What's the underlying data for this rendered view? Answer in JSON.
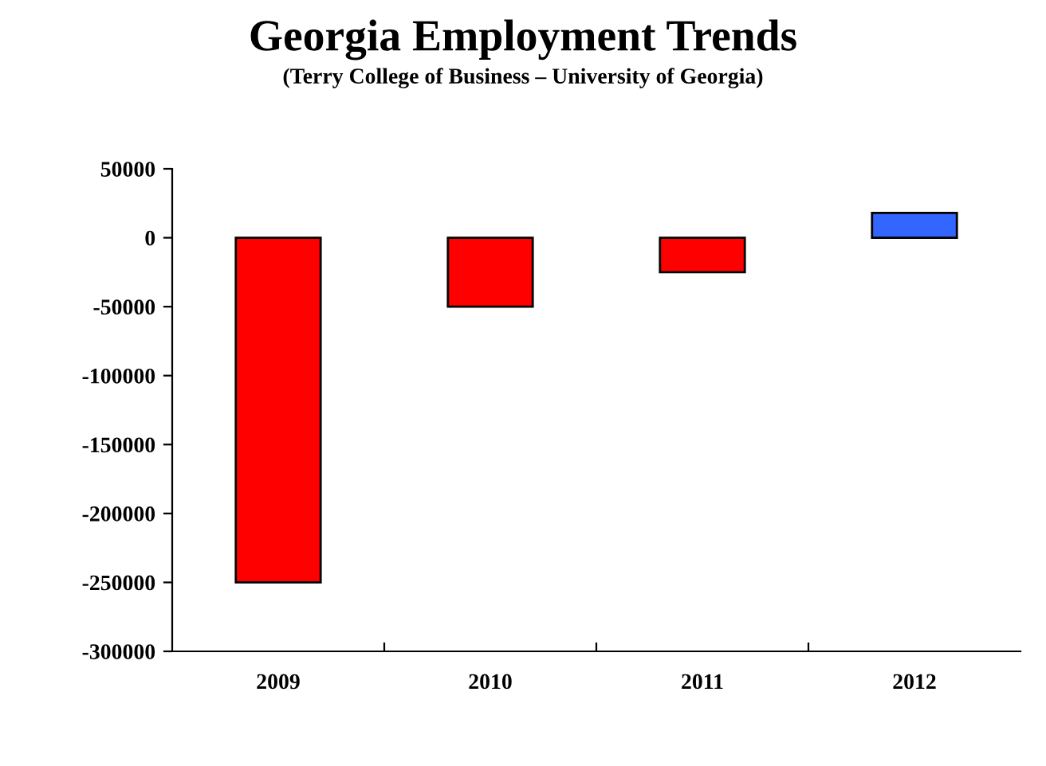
{
  "chart_data": {
    "type": "bar",
    "title": "Georgia Employment Trends",
    "subtitle": "(Terry College of Business – University of Georgia)",
    "categories": [
      "2009",
      "2010",
      "2011",
      "2012"
    ],
    "values": [
      -250000,
      -50000,
      -25000,
      18000
    ],
    "colors": [
      "#ff0000",
      "#ff0000",
      "#ff0000",
      "#3366ff"
    ],
    "ylim": [
      -300000,
      50000
    ],
    "yticks": [
      -300000,
      -250000,
      -200000,
      -150000,
      -100000,
      -50000,
      0,
      50000
    ],
    "grid": false
  }
}
